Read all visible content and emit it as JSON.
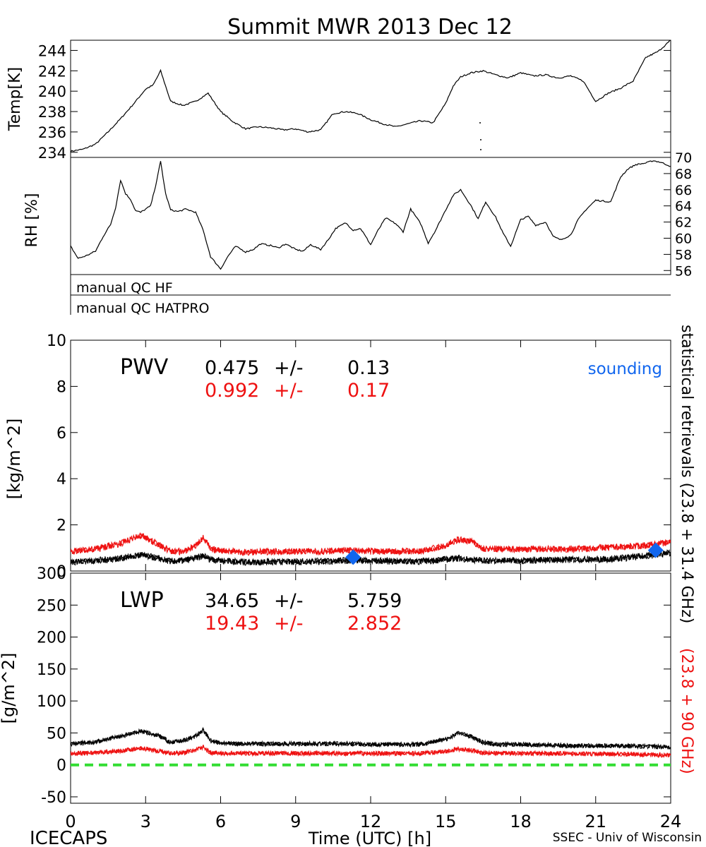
{
  "title": "Summit MWR 2013 Dec 12",
  "footer": {
    "left": "ICECAPS",
    "center": "Time (UTC) [h]",
    "right": "SSEC - Univ of Wisconsin"
  },
  "right_labels": {
    "black": "statistical retrievals (23.8 + 31.4 GHz)",
    "red": "(23.8 + 90 GHz)"
  },
  "colors": {
    "black_series": "#000000",
    "red_series": "#ee1111",
    "sounding": "#1166ee",
    "zero_line": "#33dd33"
  },
  "chart_data": [
    {
      "type": "line",
      "panel": "temperature",
      "ylabel": "Temp[K]",
      "xlim": [
        0,
        24
      ],
      "ylim": [
        233.5,
        245
      ],
      "yticks": [
        "234",
        "236",
        "238",
        "240",
        "242",
        "244"
      ],
      "series": [
        {
          "color": "#000000",
          "x": [
            0,
            0.5,
            1,
            1.5,
            2,
            2.5,
            3,
            3.3,
            3.6,
            3.8,
            4,
            4.5,
            5,
            5.5,
            6,
            6.5,
            7,
            7.5,
            8,
            8.5,
            9,
            9.5,
            10,
            10.5,
            11,
            11.5,
            12,
            12.5,
            13,
            13.5,
            14,
            14.5,
            15,
            15.3,
            15.6,
            16,
            16.5,
            17,
            17.5,
            18,
            18.5,
            19,
            19.5,
            20,
            20.5,
            21,
            21.5,
            22,
            22.5,
            23,
            23.5,
            24
          ],
          "y": [
            234.1,
            234.3,
            234.8,
            236,
            237.3,
            238.7,
            240.2,
            240.6,
            242,
            240.5,
            239,
            238.6,
            239,
            239.8,
            238,
            237,
            236.3,
            236.5,
            236.4,
            236.2,
            236.3,
            236,
            236.2,
            237.8,
            238,
            237.8,
            237.2,
            236.8,
            236.5,
            236.8,
            237.1,
            236.9,
            238.8,
            240.5,
            241.4,
            241.8,
            242,
            241.6,
            241.3,
            241.8,
            241.5,
            241.6,
            241.3,
            241.5,
            241,
            239,
            239.8,
            240.3,
            241,
            243.3,
            243.9,
            245
          ]
        }
      ]
    },
    {
      "type": "line",
      "panel": "relative-humidity",
      "ylabel": "RH [%]",
      "xlim": [
        0,
        24
      ],
      "ylim": [
        55.5,
        70
      ],
      "yticks": [
        "56",
        "58",
        "60",
        "62",
        "64",
        "66",
        "68",
        "70"
      ],
      "series": [
        {
          "color": "#000000",
          "x": [
            0,
            0.3,
            0.6,
            1,
            1.3,
            1.6,
            1.8,
            2,
            2.2,
            2.4,
            2.6,
            2.8,
            3,
            3.2,
            3.4,
            3.6,
            3.8,
            4,
            4.3,
            4.6,
            5,
            5.3,
            5.6,
            6,
            6.3,
            6.6,
            7,
            7.3,
            7.6,
            8,
            8.3,
            8.6,
            9,
            9.3,
            9.6,
            10,
            10.3,
            10.6,
            11,
            11.3,
            11.6,
            12,
            12.3,
            12.6,
            13,
            13.3,
            13.6,
            14,
            14.3,
            14.6,
            15,
            15.3,
            15.6,
            16,
            16.3,
            16.6,
            17,
            17.3,
            17.6,
            18,
            18.3,
            18.6,
            19,
            19.3,
            19.6,
            20,
            20.3,
            20.6,
            21,
            21.3,
            21.6,
            22,
            22.3,
            22.6,
            23,
            23.3,
            23.6,
            24
          ],
          "y": [
            59,
            57.5,
            57.8,
            58.4,
            60.2,
            61.7,
            63.8,
            67.2,
            65.5,
            64.8,
            63.4,
            63.2,
            63.6,
            64,
            66.5,
            69.5,
            65.5,
            63.5,
            63.3,
            63.6,
            63.2,
            61,
            57.7,
            56.2,
            57.8,
            59,
            58.3,
            58.6,
            59.3,
            59.1,
            58.8,
            59.3,
            58.6,
            58.4,
            59.2,
            58.6,
            59.8,
            61.2,
            61.9,
            61,
            61.2,
            59.2,
            61,
            62.5,
            61.8,
            60.8,
            63.6,
            61.8,
            59.4,
            61,
            63.5,
            65.3,
            66,
            64.1,
            62.4,
            64.5,
            62.6,
            60.6,
            59,
            62.3,
            62.7,
            61.6,
            62,
            60.2,
            59.8,
            60.4,
            62.3,
            63.5,
            64.7,
            64.6,
            64.5,
            67.6,
            68.6,
            69.1,
            69.3,
            69.6,
            69.4,
            68.9
          ]
        }
      ]
    },
    {
      "type": "line",
      "panel": "manual-qc",
      "series": [
        {
          "name": "manual QC HF"
        },
        {
          "name": "manual QC HATPRO"
        }
      ]
    },
    {
      "type": "line",
      "panel": "precipitable-water-vapor",
      "title": "PWV",
      "ylabel": "[kg/m^2]",
      "xlim": [
        0,
        24
      ],
      "ylim": [
        0,
        10
      ],
      "yticks": [
        "0",
        "2",
        "4",
        "6",
        "8",
        "10"
      ],
      "stats": [
        {
          "mean": "0.475",
          "sep": "+/-",
          "std": "0.13",
          "color": "#000000"
        },
        {
          "mean": "0.992",
          "sep": "+/-",
          "std": "0.17",
          "color": "#ee1111"
        }
      ],
      "series": [
        {
          "color": "#000000",
          "x": [
            0,
            1,
            2,
            2.8,
            3.5,
            4,
            4.5,
            5,
            5.3,
            5.6,
            6,
            6.5,
            7,
            8,
            9,
            10,
            11,
            12,
            13,
            14,
            15,
            15.5,
            16,
            16.5,
            17,
            18,
            19,
            20,
            21,
            22,
            23,
            24
          ],
          "y": [
            0.4,
            0.45,
            0.55,
            0.7,
            0.55,
            0.42,
            0.45,
            0.55,
            0.68,
            0.5,
            0.45,
            0.42,
            0.38,
            0.4,
            0.4,
            0.42,
            0.45,
            0.45,
            0.42,
            0.42,
            0.5,
            0.55,
            0.5,
            0.45,
            0.45,
            0.45,
            0.48,
            0.5,
            0.5,
            0.55,
            0.65,
            0.8
          ]
        },
        {
          "color": "#ee1111",
          "x": [
            0,
            1,
            2,
            2.8,
            3.5,
            4,
            4.5,
            5,
            5.3,
            5.6,
            6,
            6.5,
            7,
            8,
            9,
            10,
            11,
            12,
            13,
            14,
            15,
            15.5,
            16,
            16.5,
            17,
            18,
            19,
            20,
            21,
            22,
            23,
            24
          ],
          "y": [
            0.85,
            0.95,
            1.2,
            1.55,
            1.15,
            0.85,
            0.85,
            1.1,
            1.45,
            0.95,
            0.9,
            0.85,
            0.8,
            0.85,
            0.85,
            0.85,
            0.9,
            0.85,
            0.85,
            0.85,
            1.1,
            1.35,
            1.3,
            0.95,
            0.95,
            0.95,
            0.95,
            0.95,
            1.0,
            1.05,
            1.1,
            1.25
          ]
        }
      ],
      "sounding": {
        "label": "sounding",
        "x": [
          11.3,
          23.4
        ],
        "y": [
          0.6,
          0.9
        ]
      }
    },
    {
      "type": "line",
      "panel": "liquid-water-path",
      "title": "LWP",
      "ylabel": "[g/m^2]",
      "xlim": [
        0,
        24
      ],
      "ylim": [
        -60,
        300
      ],
      "yticks": [
        "-50",
        "0",
        "50",
        "100",
        "150",
        "200",
        "250",
        "300"
      ],
      "stats": [
        {
          "mean": "34.65",
          "sep": "+/-",
          "std": "5.759",
          "color": "#000000"
        },
        {
          "mean": "19.43",
          "sep": "+/-",
          "std": "2.852",
          "color": "#ee1111"
        }
      ],
      "series": [
        {
          "color": "#000000",
          "x": [
            0,
            1,
            2,
            2.8,
            3.5,
            4,
            4.5,
            5,
            5.3,
            5.6,
            6,
            7,
            8,
            9,
            10,
            11,
            12,
            13,
            14,
            15,
            15.5,
            16,
            16.5,
            17,
            18,
            19,
            20,
            21,
            22,
            23,
            24
          ],
          "y": [
            33,
            36,
            45,
            53,
            46,
            35,
            38,
            45,
            55,
            38,
            34,
            33,
            33,
            33,
            33,
            33,
            32,
            32,
            32,
            40,
            50,
            45,
            35,
            32,
            32,
            31,
            30,
            30,
            30,
            29,
            28
          ]
        },
        {
          "color": "#ee1111",
          "x": [
            0,
            1,
            2,
            2.8,
            3.5,
            4,
            4.5,
            5,
            5.3,
            5.6,
            6,
            7,
            8,
            9,
            10,
            11,
            12,
            13,
            14,
            15,
            15.5,
            16,
            16.5,
            17,
            18,
            19,
            20,
            21,
            22,
            23,
            24
          ],
          "y": [
            18,
            19,
            22,
            26,
            22,
            18,
            19,
            23,
            28,
            19,
            18,
            18,
            18,
            18,
            18,
            18,
            18,
            18,
            18,
            21,
            25,
            23,
            19,
            18,
            18,
            18,
            18,
            17,
            17,
            16,
            15
          ]
        },
        {
          "color": "#33dd33",
          "dashed": true,
          "x": [
            0,
            24
          ],
          "y": [
            0,
            0
          ]
        }
      ]
    }
  ],
  "x_axis": {
    "ticks": [
      "0",
      "3",
      "6",
      "9",
      "12",
      "15",
      "18",
      "21",
      "24"
    ],
    "label": "Time (UTC) [h]"
  }
}
